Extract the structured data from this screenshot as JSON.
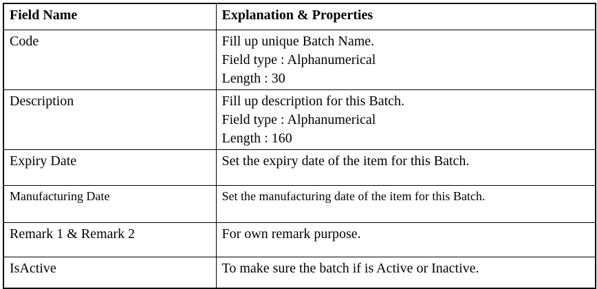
{
  "table": {
    "headers": {
      "field": "Field Name",
      "explanation": "Explanation & Properties"
    },
    "rows": [
      {
        "field": "Code",
        "explanation": [
          "Fill up unique Batch Name.",
          "Field type : Alphanumerical",
          "Length : 30"
        ]
      },
      {
        "field": "Description",
        "explanation": [
          "Fill up description for this Batch.",
          "Field type : Alphanumerical",
          "Length : 160"
        ]
      },
      {
        "field": "Expiry Date",
        "explanation": [
          "Set the expiry date of the item for this Batch."
        ]
      },
      {
        "field": "Manufacturing Date",
        "explanation": [
          "Set the manufacturing date of the item for this Batch."
        ]
      },
      {
        "field": "Remark 1 & Remark 2",
        "explanation": [
          "For own remark purpose."
        ]
      },
      {
        "field": "IsActive",
        "explanation": [
          "To make sure the batch if is Active or Inactive."
        ]
      }
    ]
  }
}
